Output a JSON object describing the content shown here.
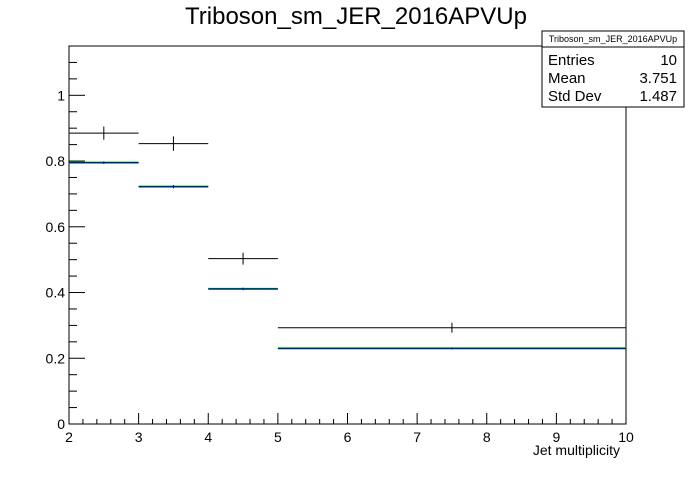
{
  "chart_data": {
    "type": "step",
    "title": "Triboson_sm_JER_2016APVUp",
    "xlabel": "Jet multiplicity",
    "ylabel": "",
    "xlim": [
      2,
      10
    ],
    "ylim": [
      0,
      1.15
    ],
    "x_ticks": [
      "2",
      "3",
      "4",
      "5",
      "6",
      "7",
      "8",
      "9",
      "10"
    ],
    "y_ticks": [
      "0",
      "0.2",
      "0.4",
      "0.6",
      "0.8",
      "1"
    ],
    "bins": [
      [
        2,
        3
      ],
      [
        3,
        4
      ],
      [
        4,
        5
      ],
      [
        5,
        10
      ]
    ],
    "series": [
      {
        "color": "#000000",
        "values": [
          0.885,
          0.853,
          0.503,
          0.293
        ],
        "errors": [
          0.02,
          0.022,
          0.018,
          0.015
        ]
      },
      {
        "color": "#00aa00",
        "values": [
          0.795,
          0.722,
          0.411,
          0.23
        ],
        "errors": [
          0,
          0,
          0,
          0
        ]
      },
      {
        "color": "#0000cc",
        "values": [
          0.795,
          0.722,
          0.411,
          0.23
        ],
        "errors": [
          0.004,
          0.005,
          0.004,
          0.003
        ]
      }
    ],
    "stats": {
      "name": "Triboson_sm_JER_2016APVUp",
      "rows": [
        {
          "label": "Entries",
          "value": "10"
        },
        {
          "label": "Mean",
          "value": "3.751"
        },
        {
          "label": "Std Dev",
          "value": "1.487"
        }
      ]
    }
  }
}
